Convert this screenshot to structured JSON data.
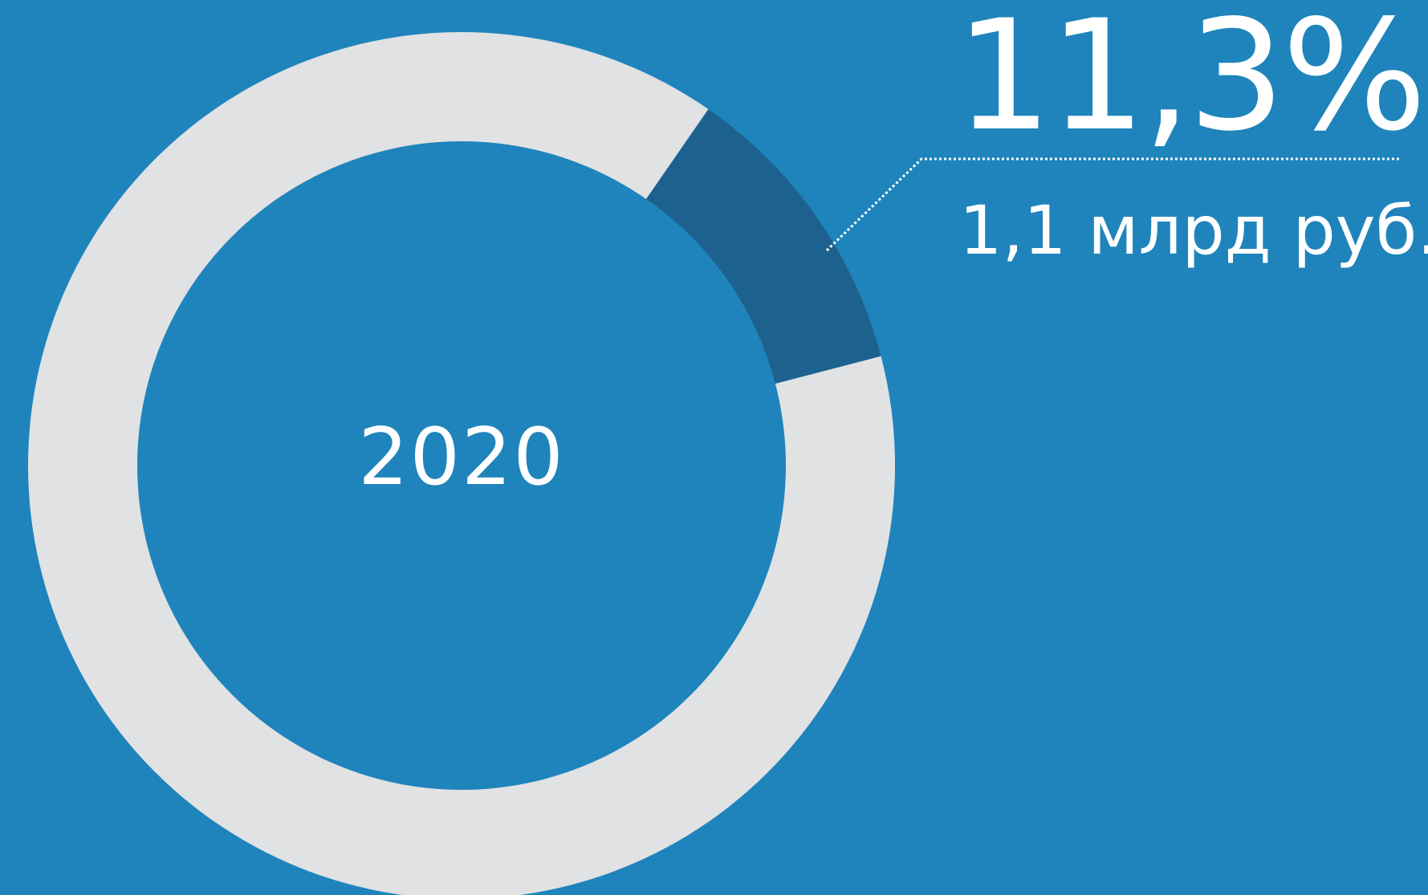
{
  "chart_data": {
    "type": "pie",
    "style": "donut",
    "center_label": "2020",
    "slices": [
      {
        "value": 11.3,
        "label": "11,3%",
        "sublabel": "1,1 млрд руб.",
        "color": "#1d628f",
        "highlighted": true
      },
      {
        "value": 88.7,
        "label": "",
        "color": "#e1e2e3",
        "highlighted": false
      }
    ],
    "start_angle_deg": 34.7,
    "direction": "clockwise"
  },
  "colors": {
    "background": "#1f84bc",
    "ring": "#e1e2e3",
    "highlight": "#1d628f",
    "text": "#ffffff",
    "leader_line": "#ffffff"
  },
  "labels": {
    "year": "2020",
    "percent": "11,3%",
    "amount": "1,1 млрд руб."
  }
}
